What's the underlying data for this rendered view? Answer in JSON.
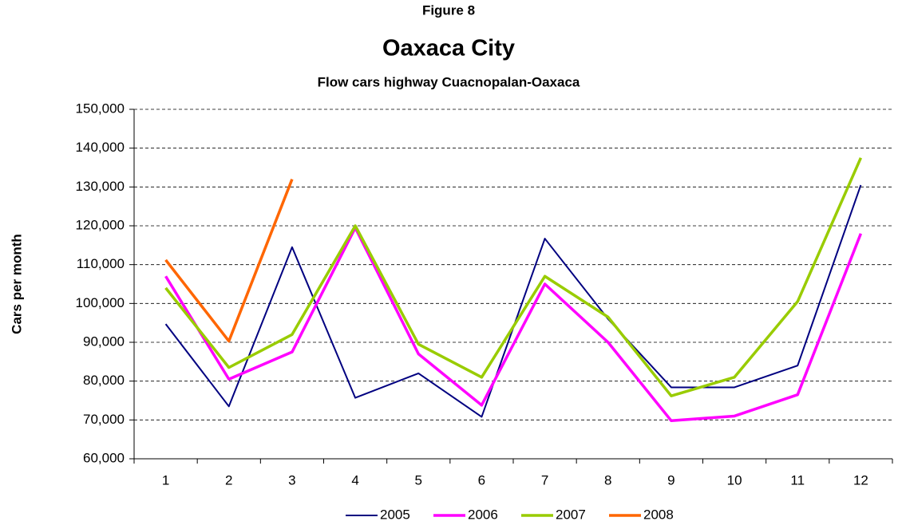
{
  "chart_data": {
    "type": "line",
    "figure_label": "Figure 8",
    "title": "Oaxaca City",
    "subtitle": "Flow cars highway Cuacnopalan-Oaxaca",
    "y_label": "Cars per month",
    "categories": [
      "1",
      "2",
      "3",
      "4",
      "5",
      "6",
      "7",
      "8",
      "9",
      "10",
      "11",
      "12"
    ],
    "series": [
      {
        "name": "2005",
        "color": "#000080",
        "values": [
          94700,
          73500,
          114500,
          75700,
          82000,
          70800,
          116700,
          96000,
          78400,
          78400,
          84000,
          130500
        ]
      },
      {
        "name": "2006",
        "color": "#ff00ff",
        "values": [
          107000,
          80500,
          87500,
          119500,
          87000,
          73800,
          105000,
          90000,
          69800,
          71000,
          76500,
          118000
        ]
      },
      {
        "name": "2007",
        "color": "#99cc00",
        "values": [
          104000,
          83500,
          92000,
          120000,
          89500,
          81000,
          107000,
          96500,
          76200,
          81000,
          100500,
          137500
        ]
      },
      {
        "name": "2008",
        "color": "#ff6600",
        "values": [
          111200,
          90300,
          132000,
          null,
          null,
          null,
          null,
          null,
          null,
          null,
          null,
          null
        ]
      }
    ],
    "ylim": [
      60000,
      150000
    ],
    "yticks": [
      {
        "value": 60000,
        "label": "60,000"
      },
      {
        "value": 70000,
        "label": "70,000"
      },
      {
        "value": 80000,
        "label": "80,000"
      },
      {
        "value": 90000,
        "label": "90,000"
      },
      {
        "value": 100000,
        "label": "100,000"
      },
      {
        "value": 110000,
        "label": "110,000"
      },
      {
        "value": 120000,
        "label": "120,000"
      },
      {
        "value": 130000,
        "label": "130,000"
      },
      {
        "value": 140000,
        "label": "140,000"
      },
      {
        "value": 150000,
        "label": "150,000"
      }
    ],
    "grid": true,
    "legend": "bottom"
  }
}
